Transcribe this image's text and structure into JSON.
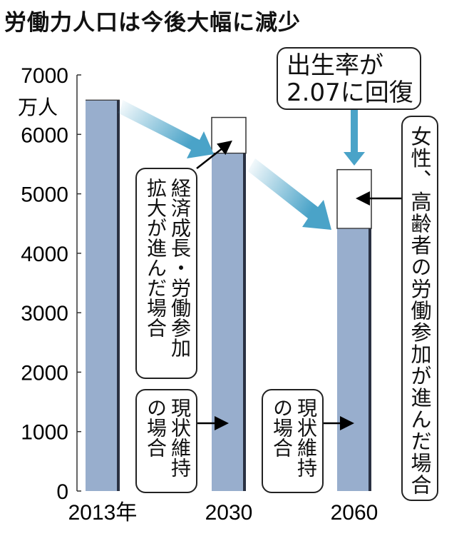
{
  "title": "労働力人口は今後大幅に減少",
  "chart_data": {
    "type": "bar",
    "title": "労働力人口は今後大幅に減少",
    "ylabel": "万人",
    "ylim": [
      0,
      7000
    ],
    "yticks": [
      0,
      1000,
      2000,
      3000,
      4000,
      5000,
      6000,
      7000
    ],
    "categories": [
      "2013年",
      "2030",
      "2060"
    ],
    "series": [
      {
        "name": "現状維持の場合",
        "values": [
          6577,
          5683,
          4418
        ],
        "color": "#98aecd"
      },
      {
        "name": "経済成長・労働参加拡大 / 女性、高齢者の労働参加 / 出生率回復",
        "values": [
          null,
          6285,
          5407
        ],
        "color": "#ffffff"
      }
    ],
    "annotations": {
      "growth": "経済成長・労働参加拡大が進んだ場合",
      "status_quo_2030": "現状維持の場合",
      "status_quo_2060": "現状維持の場合",
      "birthrate": [
        "出生率が",
        "2.07に回復"
      ],
      "women_elderly": "女性、高齢者の労働参加が進んだ場合"
    },
    "grid": false,
    "arrow_color": "#4aa3c8"
  }
}
